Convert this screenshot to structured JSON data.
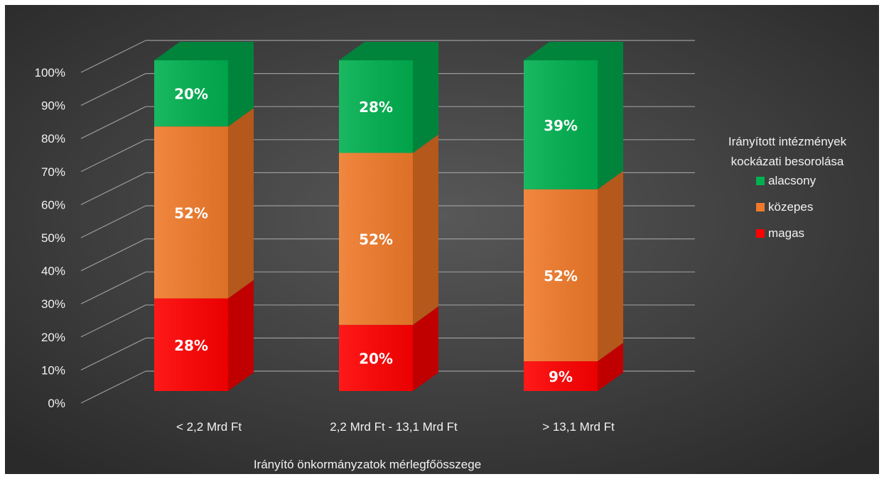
{
  "chart_data": {
    "type": "bar",
    "stacked": true,
    "three_d": true,
    "percent_stacked": true,
    "categories": [
      "< 2,2 Mrd Ft",
      "2,2 Mrd Ft - 13,1 Mrd Ft",
      "> 13,1 Mrd Ft"
    ],
    "series": [
      {
        "name": "magas",
        "values": [
          28,
          20,
          9
        ],
        "labels": [
          "28%",
          "20%",
          "9%"
        ],
        "color": "#ff0000",
        "side_color": "#c00000"
      },
      {
        "name": "közepes",
        "values": [
          52,
          52,
          52
        ],
        "labels": [
          "52%",
          "52%",
          "52%"
        ],
        "color": "#f07a2a",
        "side_color": "#b4581c"
      },
      {
        "name": "alacsony",
        "values": [
          20,
          28,
          39
        ],
        "labels": [
          "20%",
          "28%",
          "39%"
        ],
        "color": "#00b050",
        "side_color": "#00843c"
      }
    ],
    "y_ticks": [
      "0%",
      "10%",
      "20%",
      "30%",
      "40%",
      "50%",
      "60%",
      "70%",
      "80%",
      "90%",
      "100%"
    ],
    "ylim": [
      0,
      100
    ],
    "xlabel": "Irányító önkormányzatok mérlegfőösszege",
    "ylabel": "",
    "legend": {
      "title_lines": [
        "Irányított intézmények",
        "kockázati besorolása"
      ],
      "placement": "right",
      "order": [
        "alacsony",
        "közepes",
        "magas"
      ]
    },
    "grid": true,
    "background": "#3a3a3a"
  }
}
